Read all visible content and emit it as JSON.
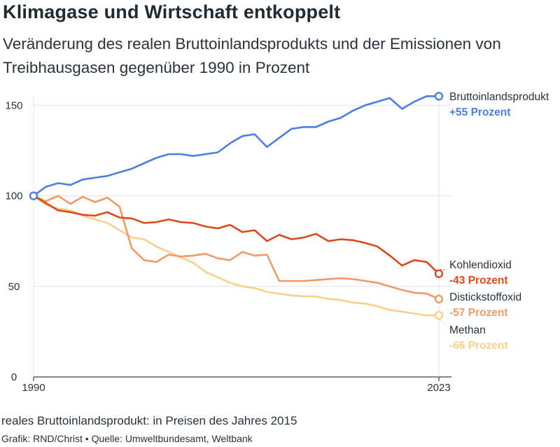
{
  "title": "Klimagase und Wirtschaft entkoppelt",
  "subtitle": "Veränderung des realen Bruttoinlandsprodukts und der Emissionen von Treibhausgasen gegenüber 1990 in Prozent",
  "note": "reales Bruttoinlandsprodukt: in Preisen des Jahres 2015",
  "credit": "Grafik: RND/Christ • Quelle: Umweltbundesamt, Weltbank",
  "chart_data": {
    "type": "line",
    "title": "Klimagase und Wirtschaft entkoppelt",
    "subtitle": "Veränderung des realen Bruttoinlandsprodukts und der Emissionen von Treibhausgasen gegenüber 1990 in Prozent",
    "xlabel": "",
    "ylabel": "",
    "xlim": [
      1990,
      2023
    ],
    "ylim": [
      0,
      160
    ],
    "grid": true,
    "legend": "direct labels right",
    "x_ticks": [
      "1990",
      "2023"
    ],
    "y_ticks": [
      "0",
      "50",
      "100",
      "150"
    ],
    "x": [
      1990,
      1991,
      1992,
      1993,
      1994,
      1995,
      1996,
      1997,
      1998,
      1999,
      2000,
      2001,
      2002,
      2003,
      2004,
      2005,
      2006,
      2007,
      2008,
      2009,
      2010,
      2011,
      2012,
      2013,
      2014,
      2015,
      2016,
      2017,
      2018,
      2019,
      2020,
      2021,
      2022,
      2023
    ],
    "series": [
      {
        "name": "Bruttoinlandsprodukt",
        "end_label": "+55 Prozent",
        "color": "#4a7fe6",
        "values": [
          100,
          105,
          107,
          106,
          109,
          110,
          111,
          113,
          115,
          118,
          121,
          123,
          123,
          122,
          123,
          124,
          129,
          133,
          134,
          127,
          132,
          137,
          138,
          138,
          141,
          143,
          147,
          150,
          152,
          154,
          148,
          152,
          155,
          155
        ]
      },
      {
        "name": "Kohlendioxid",
        "end_label": "-43 Prozent",
        "color": "#dc4a1c",
        "values": [
          100,
          96,
          92,
          91,
          89.5,
          89,
          91,
          88,
          87.5,
          85,
          85.5,
          87,
          85.5,
          85,
          83,
          82,
          84,
          80,
          81,
          75,
          78.5,
          76,
          77,
          79,
          75,
          76,
          75.5,
          74,
          72,
          67,
          61.5,
          64.5,
          63.5,
          57
        ]
      },
      {
        "name": "Distickstoffoxid",
        "end_label": "-57 Prozent",
        "color": "#f19a68",
        "values": [
          100,
          97,
          100,
          95.5,
          99.5,
          96.5,
          99,
          94,
          71,
          64.5,
          63.5,
          67.5,
          66.5,
          67,
          68,
          65.5,
          64.5,
          69,
          67,
          67.5,
          53,
          53,
          53,
          53.5,
          54,
          54.5,
          54,
          53,
          52,
          50,
          48,
          46.5,
          46,
          43
        ]
      },
      {
        "name": "Methan",
        "end_label": "-66 Prozent",
        "color": "#f8d08a",
        "values": [
          100,
          95,
          93,
          92,
          89,
          87,
          85,
          81,
          77,
          76,
          72,
          69,
          66,
          63,
          58,
          55,
          52,
          50,
          49,
          47,
          46,
          45,
          44.5,
          44.5,
          43,
          42.5,
          41,
          40.5,
          39,
          37,
          36,
          35,
          34,
          34
        ]
      }
    ]
  }
}
